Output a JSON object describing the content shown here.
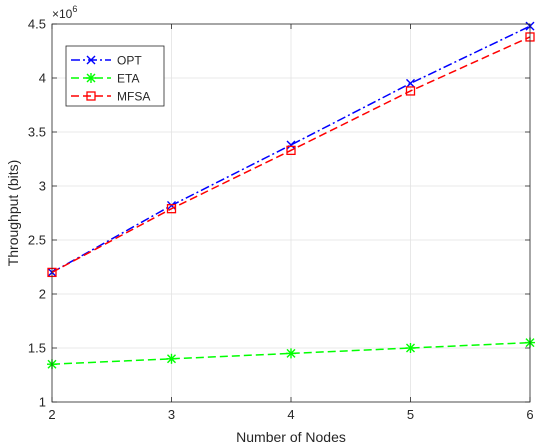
{
  "chart_data": {
    "type": "line",
    "xlabel": "Number of Nodes",
    "ylabel": "Throughput (bits)",
    "y_multiplier": {
      "base": "×10",
      "exponent": "6"
    },
    "x": [
      2,
      3,
      4,
      5,
      6
    ],
    "xlim": [
      2,
      6
    ],
    "ylim": [
      1,
      4.5
    ],
    "x_ticks": [
      "2",
      "3",
      "4",
      "5",
      "6"
    ],
    "y_ticks": [
      "1",
      "1.5",
      "2",
      "2.5",
      "3",
      "3.5",
      "4",
      "4.5"
    ],
    "grid": true,
    "legend_position": "top-left",
    "series": [
      {
        "name": "OPT",
        "values": [
          2.2,
          2.82,
          3.38,
          3.95,
          4.48
        ],
        "color": "#0000ff",
        "line_style": "dash-dot",
        "marker": "x"
      },
      {
        "name": "ETA",
        "values": [
          1.35,
          1.4,
          1.45,
          1.5,
          1.55
        ],
        "color": "#00ff00",
        "line_style": "dashed",
        "marker": "star"
      },
      {
        "name": "MFSA",
        "values": [
          2.2,
          2.79,
          3.33,
          3.88,
          4.38
        ],
        "color": "#ff0000",
        "line_style": "dashed",
        "marker": "square"
      }
    ]
  }
}
